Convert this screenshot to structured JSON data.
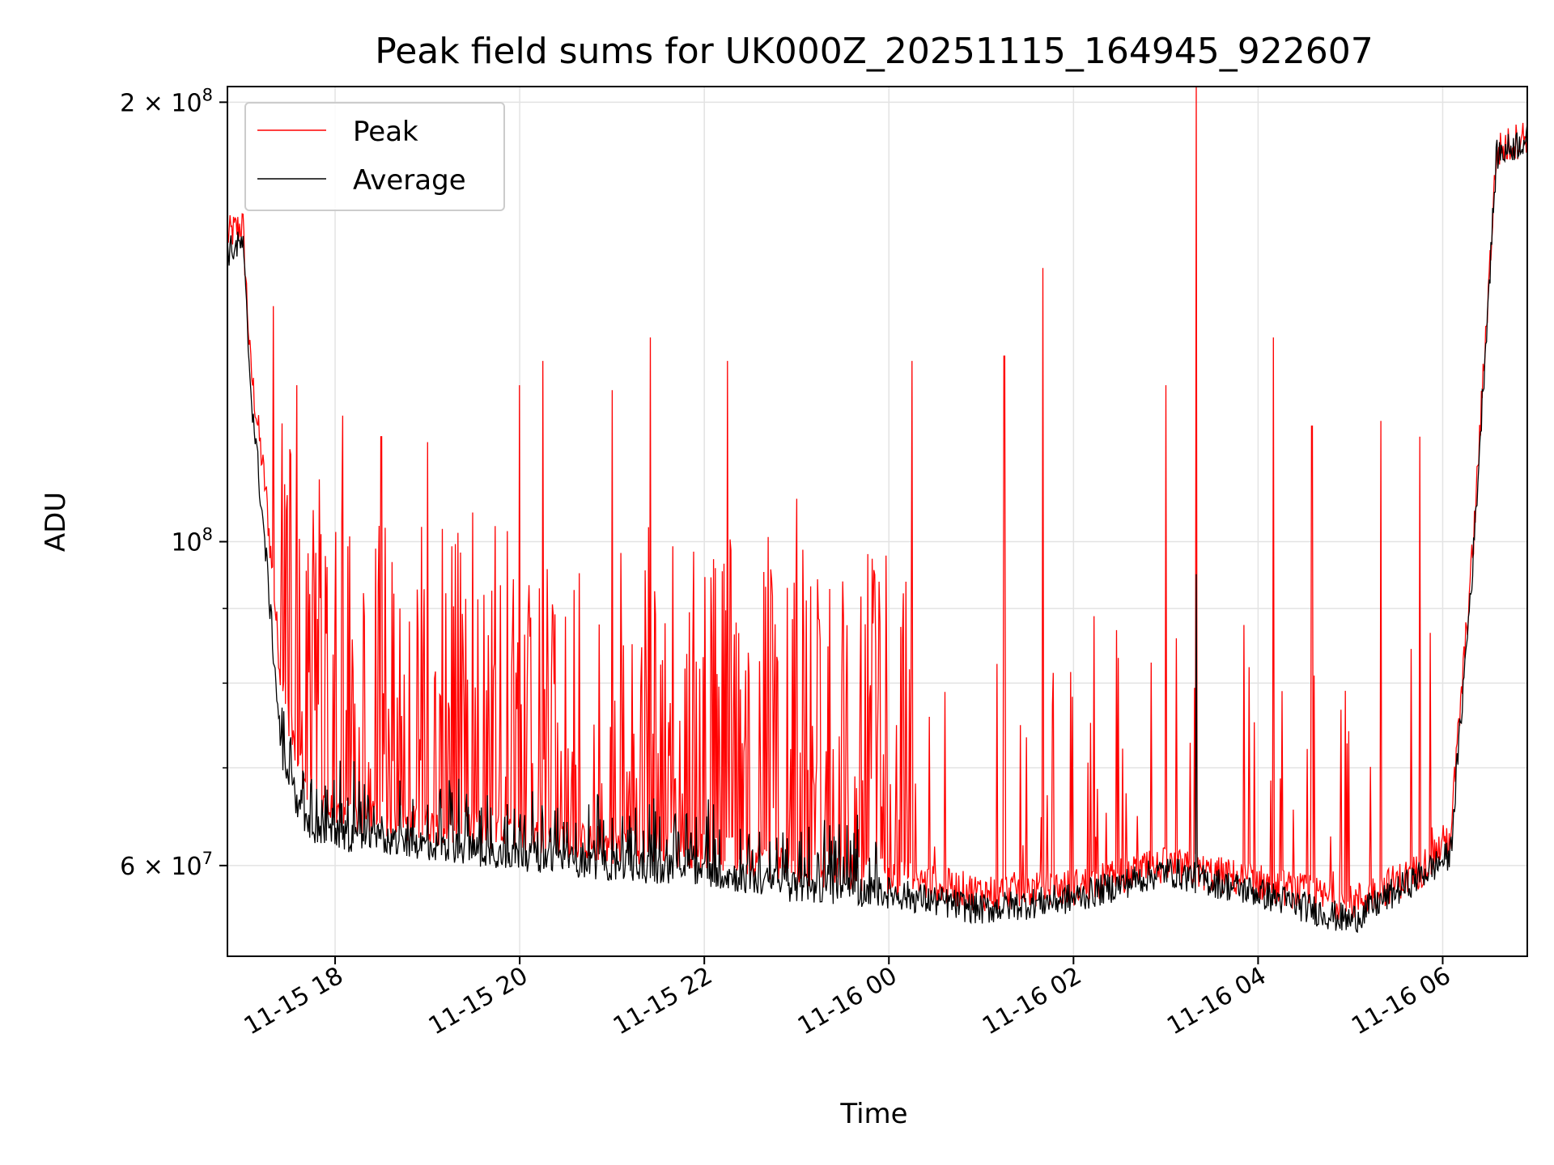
{
  "chart_data": {
    "type": "line",
    "title": "Peak field sums for UK000Z_20251115_164945_922607",
    "xlabel": "Time",
    "ylabel": "ADU",
    "yscale": "log",
    "ylim": [
      52000000,
      205000000
    ],
    "xlim": [
      "2025-11-15 16:50",
      "2025-11-16 06:55"
    ],
    "grid": true,
    "legend_position": "upper-left",
    "x_ticks": [
      {
        "value": "2025-11-15 18:00",
        "label": "11-15 18"
      },
      {
        "value": "2025-11-15 20:00",
        "label": "11-15 20"
      },
      {
        "value": "2025-11-15 22:00",
        "label": "11-15 22"
      },
      {
        "value": "2025-11-16 00:00",
        "label": "11-16 00"
      },
      {
        "value": "2025-11-16 02:00",
        "label": "11-16 02"
      },
      {
        "value": "2025-11-16 04:00",
        "label": "11-16 04"
      },
      {
        "value": "2025-11-16 06:00",
        "label": "11-16 06"
      }
    ],
    "y_ticks_major": [
      {
        "value": 200000000,
        "label": "2 × 10⁸",
        "mantissa": "2",
        "exponent": "8"
      },
      {
        "value": 100000000,
        "label": "10⁸",
        "mantissa": "",
        "exponent": "8"
      },
      {
        "value": 60000000,
        "label": "6 × 10⁷",
        "mantissa": "6",
        "exponent": "7"
      }
    ],
    "y_ticks_minor": [
      70000000,
      80000000,
      90000000
    ],
    "series": [
      {
        "name": "Peak",
        "color": "#ff0000",
        "baseline": [
          [
            "2025-11-15 16:50",
            162000000
          ],
          [
            "2025-11-15 17:00",
            165000000
          ],
          [
            "2025-11-15 17:05",
            132000000
          ],
          [
            "2025-11-15 17:15",
            108000000
          ],
          [
            "2025-11-15 17:25",
            80000000
          ],
          [
            "2025-11-15 17:40",
            68000000
          ],
          [
            "2025-11-15 18:00",
            65000000
          ],
          [
            "2025-11-15 19:00",
            64000000
          ],
          [
            "2025-11-15 20:00",
            63000000
          ],
          [
            "2025-11-15 21:00",
            62000000
          ],
          [
            "2025-11-15 22:00",
            61500000
          ],
          [
            "2025-11-15 23:00",
            60000000
          ],
          [
            "2025-11-16 00:00",
            59000000
          ],
          [
            "2025-11-16 01:00",
            57500000
          ],
          [
            "2025-11-16 02:00",
            58000000
          ],
          [
            "2025-11-16 03:00",
            60000000
          ],
          [
            "2025-11-16 04:00",
            58500000
          ],
          [
            "2025-11-16 05:00",
            56500000
          ],
          [
            "2025-11-16 05:45",
            59500000
          ],
          [
            "2025-11-16 06:05",
            63000000
          ],
          [
            "2025-11-16 06:20",
            100000000
          ],
          [
            "2025-11-16 06:35",
            185000000
          ],
          [
            "2025-11-16 06:55",
            190000000
          ]
        ],
        "spikes": [
          [
            "2025-11-15 17:20",
            145000000
          ],
          [
            "2025-11-15 17:35",
            128000000
          ],
          [
            "2025-11-15 18:05",
            122000000
          ],
          [
            "2025-11-15 18:30",
            118000000
          ],
          [
            "2025-11-15 19:00",
            117000000
          ],
          [
            "2025-11-15 20:00",
            128000000
          ],
          [
            "2025-11-15 20:15",
            133000000
          ],
          [
            "2025-11-15 21:00",
            127000000
          ],
          [
            "2025-11-15 21:25",
            138000000
          ],
          [
            "2025-11-15 22:15",
            133000000
          ],
          [
            "2025-11-15 23:00",
            107000000
          ],
          [
            "2025-11-16 00:15",
            133000000
          ],
          [
            "2025-11-16 01:15",
            134000000
          ],
          [
            "2025-11-16 01:40",
            154000000
          ],
          [
            "2025-11-16 03:00",
            128000000
          ],
          [
            "2025-11-16 03:20",
            205000000
          ],
          [
            "2025-11-16 04:10",
            138000000
          ],
          [
            "2025-11-16 04:35",
            120000000
          ],
          [
            "2025-11-16 05:20",
            121000000
          ],
          [
            "2025-11-16 05:45",
            118000000
          ]
        ]
      },
      {
        "name": "Average",
        "color": "#000000",
        "baseline": [
          [
            "2025-11-15 16:50",
            158000000
          ],
          [
            "2025-11-15 17:00",
            160000000
          ],
          [
            "2025-11-15 17:05",
            128000000
          ],
          [
            "2025-11-15 17:15",
            98000000
          ],
          [
            "2025-11-15 17:25",
            72000000
          ],
          [
            "2025-11-15 17:40",
            64000000
          ],
          [
            "2025-11-15 18:00",
            63000000
          ],
          [
            "2025-11-15 19:00",
            62000000
          ],
          [
            "2025-11-15 20:00",
            61000000
          ],
          [
            "2025-11-15 21:00",
            60000000
          ],
          [
            "2025-11-15 22:00",
            59500000
          ],
          [
            "2025-11-15 23:00",
            58000000
          ],
          [
            "2025-11-16 00:00",
            57500000
          ],
          [
            "2025-11-16 01:00",
            56000000
          ],
          [
            "2025-11-16 02:00",
            57000000
          ],
          [
            "2025-11-16 03:00",
            59500000
          ],
          [
            "2025-11-16 04:00",
            57500000
          ],
          [
            "2025-11-16 05:00",
            55000000
          ],
          [
            "2025-11-16 05:45",
            59000000
          ],
          [
            "2025-11-16 06:05",
            61000000
          ],
          [
            "2025-11-16 06:20",
            98000000
          ],
          [
            "2025-11-16 06:35",
            184000000
          ],
          [
            "2025-11-16 06:55",
            189000000
          ]
        ]
      }
    ]
  }
}
